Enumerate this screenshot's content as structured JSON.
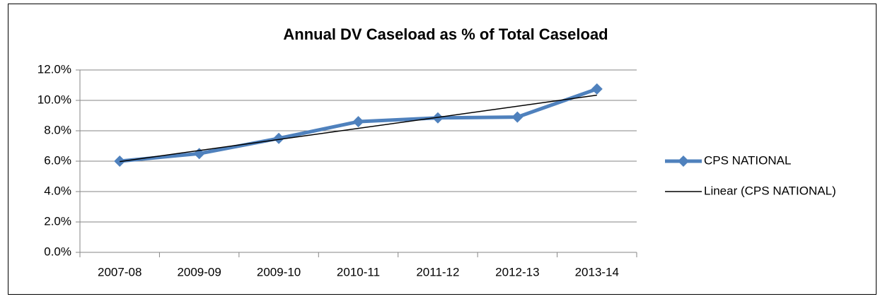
{
  "chart_data": {
    "type": "line",
    "title": "Annual DV Caseload as % of Total Caseload",
    "categories": [
      "2007-08",
      "2009-09",
      "2009-10",
      "2010-11",
      "2011-12",
      "2012-13",
      "2013-14"
    ],
    "series": [
      {
        "name": "CPS NATIONAL",
        "color": "#4f81bd",
        "values": [
          6.0,
          6.5,
          7.5,
          8.6,
          8.85,
          8.9,
          10.75
        ]
      }
    ],
    "trendline": {
      "name": "Linear (CPS NATIONAL)",
      "kind": "linear",
      "color": "#000000"
    },
    "ylim": [
      0,
      12
    ],
    "yticks": [
      {
        "value": 0,
        "label": "0.0%"
      },
      {
        "value": 2,
        "label": "2.0%"
      },
      {
        "value": 4,
        "label": "4.0%"
      },
      {
        "value": 6,
        "label": "6.0%"
      },
      {
        "value": 8,
        "label": "8.0%"
      },
      {
        "value": 10,
        "label": "10.0%"
      },
      {
        "value": 12,
        "label": "12.0%"
      }
    ],
    "grid": true,
    "legend": "right"
  }
}
